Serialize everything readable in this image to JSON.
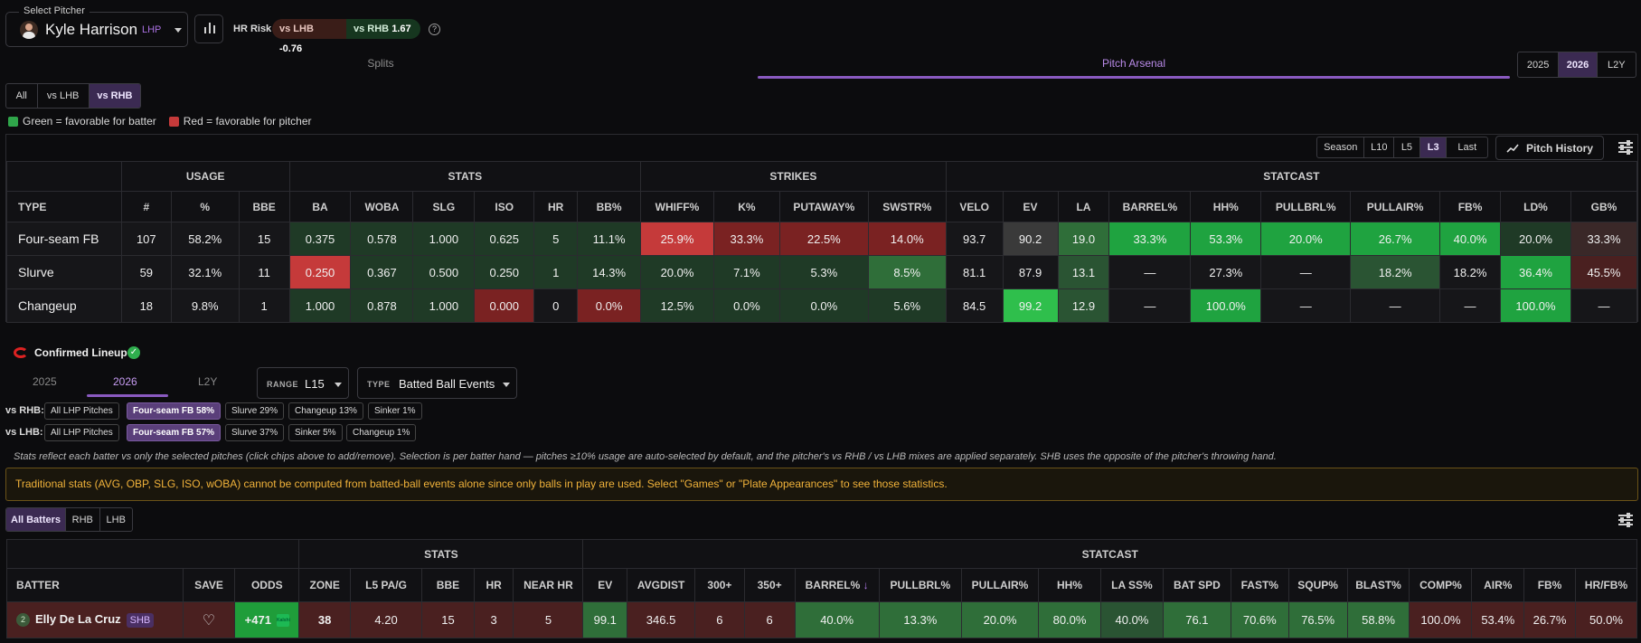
{
  "pitcher": {
    "legend": "Select Pitcher",
    "name": "Kyle Harrison",
    "hand": "LHP",
    "hr_risk_label": "HR Risk",
    "vs_lhb_label": "vs LHB",
    "vs_lhb_value": "-0.76",
    "vs_rhb_label": "vs RHB",
    "vs_rhb_value": "1.67"
  },
  "tabs": {
    "splits": "Splits",
    "arsenal": "Pitch Arsenal"
  },
  "season_seg": [
    "2025",
    "2026",
    "L2Y"
  ],
  "hand_seg": [
    "All",
    "vs LHB",
    "vs RHB"
  ],
  "legend": {
    "green": "Green = favorable for batter",
    "red": "Red = favorable for pitcher",
    "green_color": "#2fa54a",
    "red_color": "#c53a3a"
  },
  "range_seg": [
    "Season",
    "L10",
    "L5",
    "L3",
    "Last"
  ],
  "pitch_history": "Pitch History",
  "arsenal": {
    "groups": [
      "USAGE",
      "STATS",
      "STRIKES",
      "STATCAST"
    ],
    "headers": [
      "TYPE",
      "#",
      "%",
      "BBE",
      "BA",
      "WOBA",
      "SLG",
      "ISO",
      "HR",
      "BB%",
      "WHIFF%",
      "K%",
      "PUTAWAY%",
      "SWSTR%",
      "VELO",
      "EV",
      "LA",
      "BARREL%",
      "HH%",
      "PULLBRL%",
      "PULLAIR%",
      "FB%",
      "LD%",
      "GB%"
    ],
    "rows": [
      [
        "Four-seam FB",
        "107",
        "58.2%",
        "15",
        "0.375",
        "0.578",
        "1.000",
        "0.625",
        "5",
        "11.1%",
        "25.9%",
        "33.3%",
        "22.5%",
        "14.0%",
        "93.7",
        "90.2",
        "19.0",
        "33.3%",
        "53.3%",
        "20.0%",
        "26.7%",
        "40.0%",
        "20.0%",
        "33.3%"
      ],
      [
        "Slurve",
        "59",
        "32.1%",
        "11",
        "0.250",
        "0.367",
        "0.500",
        "0.250",
        "1",
        "14.3%",
        "20.0%",
        "7.1%",
        "5.3%",
        "8.5%",
        "81.1",
        "87.9",
        "13.1",
        "—",
        "27.3%",
        "—",
        "18.2%",
        "18.2%",
        "36.4%",
        "45.5%"
      ],
      [
        "Changeup",
        "18",
        "9.8%",
        "1",
        "1.000",
        "0.878",
        "1.000",
        "0.000",
        "0",
        "0.0%",
        "12.5%",
        "0.0%",
        "0.0%",
        "5.6%",
        "84.5",
        "99.2",
        "12.9",
        "—",
        "100.0%",
        "—",
        "—",
        "—",
        "100.0%",
        "—"
      ]
    ]
  },
  "lineup": {
    "title": "Confirmed Lineup",
    "year_tabs": [
      "2025",
      "2026",
      "L2Y"
    ],
    "range_label": "RANGE",
    "range_value": "L15",
    "type_label": "TYPE",
    "type_value": "Batted Ball Events",
    "rhb_label": "vs RHB:",
    "rhb_chips": [
      "All LHP Pitches",
      "Four-seam FB 58%",
      "Slurve 29%",
      "Changeup 13%",
      "Sinker 1%"
    ],
    "lhb_label": "vs LHB:",
    "lhb_chips": [
      "All LHP Pitches",
      "Four-seam FB 57%",
      "Slurve 37%",
      "Sinker 5%",
      "Changeup 1%"
    ],
    "note": "Stats reflect each batter vs only the selected pitches (click chips above to add/remove). Selection is per batter hand — pitches ≥10% usage are auto-selected by default, and the pitcher's vs RHB / vs LHB mixes are applied separately. SHB uses the opposite of the pitcher's throwing hand.",
    "warning": "Traditional stats (AVG, OBP, SLG, ISO, wOBA) cannot be computed from batted-ball events alone since only balls in play are used. Select \"Games\" or \"Plate Appearances\" to see those statistics.",
    "batter_seg": [
      "All Batters",
      "RHB",
      "LHB"
    ]
  },
  "batters": {
    "groups": [
      "STATS",
      "STATCAST"
    ],
    "headers": [
      "BATTER",
      "SAVE",
      "ODDS",
      "ZONE",
      "L5 PA/G",
      "BBE",
      "HR",
      "NEAR HR",
      "EV",
      "AVGDIST",
      "300+",
      "350+",
      "BARREL%",
      "PULLBRL%",
      "PULLAIR%",
      "HH%",
      "LA SS%",
      "BAT SPD",
      "FAST%",
      "SQUP%",
      "BLAST%",
      "COMP%",
      "AIR%",
      "FB%",
      "HR/FB%"
    ],
    "rows": [
      {
        "rank": "2",
        "name": "Elly De La Cruz",
        "tag": "SHB",
        "odds": "+471",
        "book": "Kalshi",
        "zone": "38",
        "l5pa": "4.20",
        "bbe": "15",
        "hr": "3",
        "nearhr": "5",
        "ev": "99.1",
        "avgdist": "346.5",
        "d300": "6",
        "d350": "6",
        "barrel": "40.0%",
        "pullbrl": "13.3%",
        "pullair": "20.0%",
        "hh": "80.0%",
        "lass": "40.0%",
        "batspd": "76.1",
        "fast": "70.6%",
        "squp": "76.5%",
        "blast": "58.8%",
        "comp": "100.0%",
        "air": "53.4%",
        "fb": "26.7%",
        "hrfb": "50.0%"
      }
    ]
  }
}
